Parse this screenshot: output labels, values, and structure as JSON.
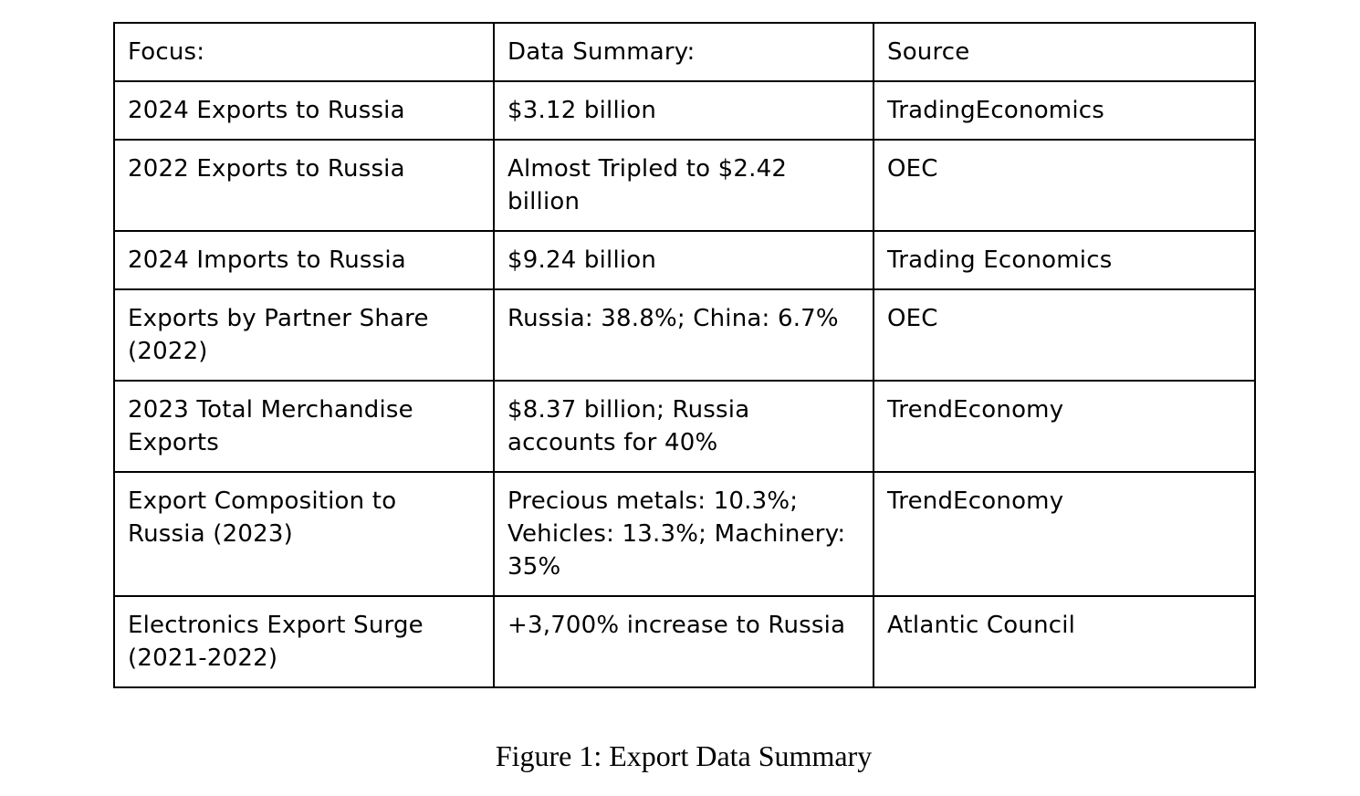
{
  "table": {
    "headers": [
      "Focus:",
      "Data Summary:",
      "Source"
    ],
    "rows": [
      [
        "2024 Exports to Russia",
        "$3.12 billion",
        "TradingEconomics"
      ],
      [
        "2022 Exports to Russia",
        "Almost Tripled to $2.42 billion",
        "OEC"
      ],
      [
        "2024 Imports to Russia",
        "$9.24 billion",
        "Trading Economics"
      ],
      [
        "Exports by Partner Share (2022)",
        "Russia: 38.8%; China: 6.7%",
        "OEC"
      ],
      [
        "2023 Total Merchandise Exports",
        "$8.37 billion; Russia accounts for 40%",
        "TrendEconomy"
      ],
      [
        "Export Composition to Russia (2023)",
        "Precious metals: 10.3%; Vehicles: 13.3%; Machinery: 35%",
        "TrendEconomy"
      ],
      [
        "Electronics Export Surge (2021-2022)",
        "+3,700% increase to Russia",
        "Atlantic Council"
      ]
    ]
  },
  "caption": "Figure 1: Export Data Summary"
}
